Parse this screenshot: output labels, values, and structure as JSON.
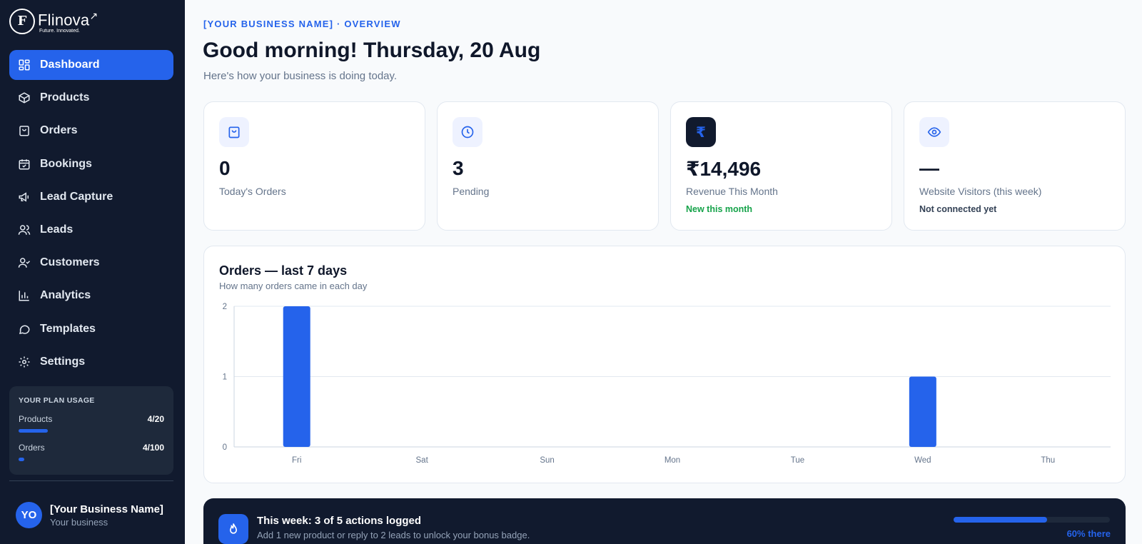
{
  "brand": {
    "mark": "F",
    "name": "Flinova",
    "tagline": "Future. Innovated."
  },
  "nav": [
    {
      "label": "Dashboard",
      "icon": "dashboard-icon",
      "active": true
    },
    {
      "label": "Products",
      "icon": "box-icon"
    },
    {
      "label": "Orders",
      "icon": "bag-icon"
    },
    {
      "label": "Bookings",
      "icon": "calendar-check-icon"
    },
    {
      "label": "Lead Capture",
      "icon": "megaphone-icon"
    },
    {
      "label": "Leads",
      "icon": "users-icon"
    },
    {
      "label": "Customers",
      "icon": "user-check-icon"
    },
    {
      "label": "Analytics",
      "icon": "bar-chart-icon"
    },
    {
      "label": "Templates",
      "icon": "chat-bubble-icon"
    },
    {
      "label": "Settings",
      "icon": "gear-icon"
    }
  ],
  "plan": {
    "title": "YOUR PLAN USAGE",
    "products": {
      "label": "Products",
      "value": "4/20",
      "fraction": 0.2
    },
    "orders": {
      "label": "Orders",
      "value": "4/100",
      "fraction": 0.04
    }
  },
  "profile": {
    "initials": "YO",
    "name": "[Your Business Name]",
    "sub": "Your business"
  },
  "header": {
    "overline": "[YOUR BUSINESS NAME] · OVERVIEW",
    "greeting": "Good morning! Thursday, 20 Aug",
    "subtitle": "Here's how your business is doing today."
  },
  "stats": [
    {
      "icon": "bag-icon",
      "value": "0",
      "label": "Today's Orders"
    },
    {
      "icon": "clock-icon",
      "value": "3",
      "label": "Pending"
    },
    {
      "icon": "rupee-icon",
      "icon_glyph": "₹",
      "value": "₹14,496",
      "label": "Revenue This Month",
      "note": "New this month",
      "note_color": "#16a34a"
    },
    {
      "icon": "eye-icon",
      "value": "—",
      "label": "Website Visitors (this week)",
      "note": "Not connected yet",
      "note_color": "#334155"
    }
  ],
  "chart": {
    "title": "Orders — last 7 days",
    "subtitle": "How many orders came in each day"
  },
  "chart_data": {
    "type": "bar",
    "categories": [
      "Fri",
      "Sat",
      "Sun",
      "Mon",
      "Tue",
      "Wed",
      "Thu"
    ],
    "values": [
      2,
      0,
      0,
      0,
      0,
      1,
      0
    ],
    "ylim": [
      0,
      2
    ],
    "yticks": [
      0,
      1,
      2
    ],
    "grid": true,
    "color": "#2563eb"
  },
  "streak": {
    "title": "This week: 3 of 5 actions logged",
    "subtitle": "Add 1 new product or reply to 2 leads to unlock your bonus badge.",
    "progress": 0.6,
    "progress_label": "60% there",
    "icon": "flame-icon"
  },
  "colors": {
    "accent": "#2563eb",
    "sidebar": "#111a2e"
  }
}
